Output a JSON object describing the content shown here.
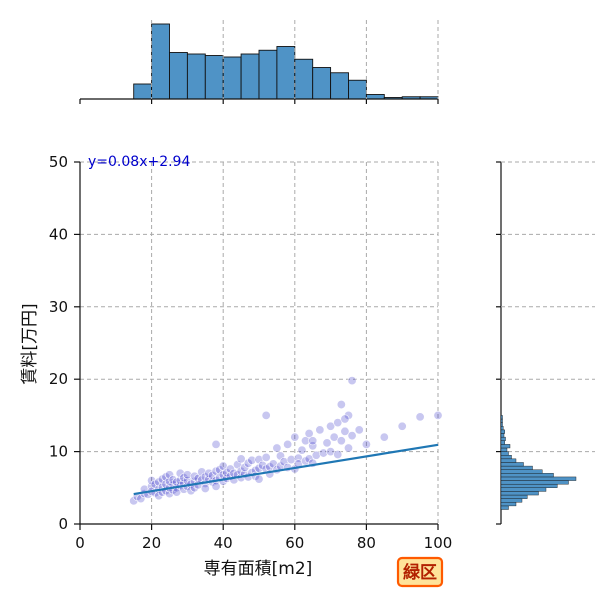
{
  "chart_data": {
    "type": "scatter",
    "title": "",
    "xlabel": "専有面積[m2]",
    "ylabel": "賃料[万円]",
    "xlim": [
      0,
      100
    ],
    "ylim": [
      0,
      50
    ],
    "xticks": [
      0,
      20,
      40,
      60,
      80,
      100
    ],
    "yticks": [
      0,
      10,
      20,
      30,
      40,
      50
    ],
    "grid": true,
    "annotation": "y=0.08x+2.94",
    "badge": "緑区",
    "regression": {
      "slope": 0.08,
      "intercept": 2.94,
      "x_range": [
        15,
        100
      ]
    },
    "scatter_points": {
      "x": [
        15,
        16,
        17,
        18,
        18,
        19,
        20,
        20,
        20,
        21,
        21,
        22,
        22,
        22,
        23,
        23,
        23,
        24,
        24,
        24,
        25,
        25,
        25,
        25,
        26,
        26,
        26,
        27,
        27,
        27,
        28,
        28,
        28,
        29,
        29,
        29,
        30,
        30,
        30,
        31,
        31,
        32,
        32,
        32,
        33,
        33,
        34,
        34,
        35,
        35,
        35,
        36,
        36,
        37,
        37,
        38,
        38,
        38,
        39,
        39,
        40,
        40,
        40,
        41,
        41,
        42,
        42,
        43,
        43,
        44,
        44,
        45,
        45,
        45,
        46,
        46,
        47,
        47,
        48,
        48,
        49,
        49,
        50,
        50,
        50,
        51,
        52,
        52,
        53,
        53,
        54,
        55,
        55,
        56,
        56,
        57,
        58,
        58,
        59,
        60,
        60,
        61,
        61,
        62,
        63,
        63,
        64,
        64,
        65,
        65,
        66,
        67,
        68,
        69,
        70,
        70,
        71,
        72,
        72,
        73,
        74,
        75,
        75,
        76,
        78,
        80,
        85,
        90,
        95,
        100,
        76,
        73,
        74,
        52,
        65,
        38
      ],
      "y": [
        3.2,
        3.8,
        3.5,
        4.2,
        4.8,
        4.1,
        5.2,
        4.5,
        6.0,
        5.5,
        4.3,
        4.8,
        5.8,
        3.9,
        5.1,
        6.2,
        4.4,
        4.6,
        5.5,
        6.5,
        4.2,
        5.0,
        5.9,
        6.8,
        4.7,
        5.4,
        6.1,
        5.0,
        5.8,
        4.4,
        5.3,
        6.0,
        7.0,
        4.8,
        5.6,
        6.4,
        5.2,
        6.0,
        6.8,
        5.5,
        4.6,
        5.9,
        6.6,
        5.0,
        6.3,
        5.4,
        6.1,
        7.2,
        5.6,
        6.5,
        4.9,
        6.2,
        7.0,
        5.8,
        6.7,
        6.0,
        7.3,
        5.2,
        6.4,
        7.5,
        5.9,
        6.8,
        8.0,
        6.3,
        7.1,
        6.6,
        7.6,
        6.1,
        7.0,
        6.8,
        8.2,
        6.4,
        7.3,
        9.0,
        6.9,
        7.8,
        6.5,
        8.4,
        7.1,
        8.8,
        7.4,
        6.6,
        7.7,
        8.9,
        6.2,
        8.1,
        7.6,
        9.2,
        7.9,
        6.9,
        8.3,
        7.5,
        10.5,
        8.0,
        9.4,
        8.6,
        7.8,
        11.0,
        8.9,
        7.6,
        12.0,
        9.1,
        8.3,
        10.2,
        8.7,
        11.5,
        9.0,
        12.5,
        8.4,
        10.8,
        9.5,
        13.0,
        9.8,
        11.2,
        10.0,
        13.5,
        12.0,
        9.6,
        14.0,
        11.5,
        12.8,
        10.5,
        15.0,
        12.2,
        13.0,
        11.0,
        12.0,
        13.5,
        14.8,
        15.0,
        19.8,
        16.5,
        14.5,
        15.0,
        11.5,
        11.0
      ]
    },
    "marginal_x_histogram": {
      "bin_edges": [
        0,
        5,
        10,
        15,
        20,
        25,
        30,
        35,
        40,
        45,
        50,
        55,
        60,
        65,
        70,
        75,
        80,
        85,
        90,
        95,
        100
      ],
      "heights": [
        0,
        0,
        0,
        0.2,
        1.0,
        0.62,
        0.6,
        0.58,
        0.56,
        0.6,
        0.65,
        0.7,
        0.53,
        0.42,
        0.35,
        0.25,
        0.06,
        0.02,
        0.03,
        0.03
      ]
    },
    "marginal_y_histogram": {
      "bin_edges": [
        2,
        2.5,
        3,
        3.5,
        4,
        4.5,
        5,
        5.5,
        6,
        6.5,
        7,
        7.5,
        8,
        8.5,
        9,
        9.5,
        10,
        10.5,
        11,
        11.5,
        12,
        12.5,
        13,
        13.5,
        14,
        14.5,
        15
      ],
      "heights": [
        0.1,
        0.2,
        0.28,
        0.35,
        0.5,
        0.6,
        0.75,
        0.9,
        1.0,
        0.7,
        0.55,
        0.42,
        0.3,
        0.2,
        0.14,
        0.1,
        0.08,
        0.12,
        0.05,
        0.06,
        0.04,
        0.05,
        0.03,
        0.02,
        0.02,
        0.02
      ]
    },
    "colors": {
      "scatter": "#3a37c8",
      "line": "#1f77b4",
      "hist_fill": "#4f93c6",
      "hist_edge": "#111111",
      "annotation": "#0000cc",
      "grid": "#aaaaaa",
      "badge_bg": "#ffe39a",
      "badge_border": "#ff5a00",
      "badge_text": "#b22000"
    }
  }
}
